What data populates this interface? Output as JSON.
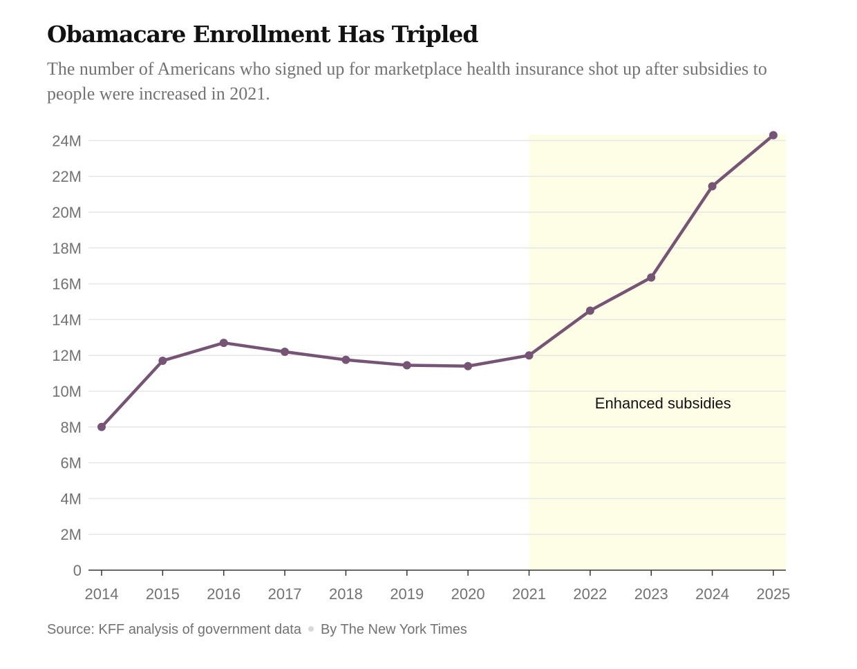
{
  "header": {
    "title": "Obamacare Enrollment Has Tripled",
    "subtitle": "The number of Americans who signed up for marketplace health insurance shot up after subsidies to people were increased in 2021."
  },
  "footer": {
    "source": "Source: KFF analysis of government data",
    "byline": "By The New York Times"
  },
  "chart_data": {
    "type": "line",
    "title": "Obamacare Enrollment Has Tripled",
    "xlabel": "",
    "ylabel": "",
    "x": [
      2014,
      2015,
      2016,
      2017,
      2018,
      2019,
      2020,
      2021,
      2022,
      2023,
      2024,
      2025
    ],
    "x_tick_labels": [
      "2014",
      "2015",
      "2016",
      "2017",
      "2018",
      "2019",
      "2020",
      "2021",
      "2022",
      "2023",
      "2024",
      "2025"
    ],
    "series": [
      {
        "values": [
          8.0,
          11.7,
          12.7,
          12.2,
          11.75,
          11.45,
          11.4,
          12.0,
          14.5,
          16.35,
          21.45,
          24.3
        ],
        "color": "#765475"
      }
    ],
    "unit": "millions",
    "ylim": [
      0,
      24.5
    ],
    "y_ticks": [
      0,
      2,
      4,
      6,
      8,
      10,
      12,
      14,
      16,
      18,
      20,
      22,
      24
    ],
    "y_tick_labels": [
      "0",
      "2M",
      "4M",
      "6M",
      "8M",
      "10M",
      "12M",
      "14M",
      "16M",
      "18M",
      "20M",
      "22M",
      "24M"
    ],
    "grid": true,
    "highlight": {
      "x_start": 2021,
      "x_end": 2025,
      "label": "Enhanced subsidies",
      "color": "#fefee6"
    },
    "colors": {
      "line": "#765475",
      "grid": "#e6e6e6",
      "axis": "#333333",
      "tick_text": "#727272"
    }
  }
}
